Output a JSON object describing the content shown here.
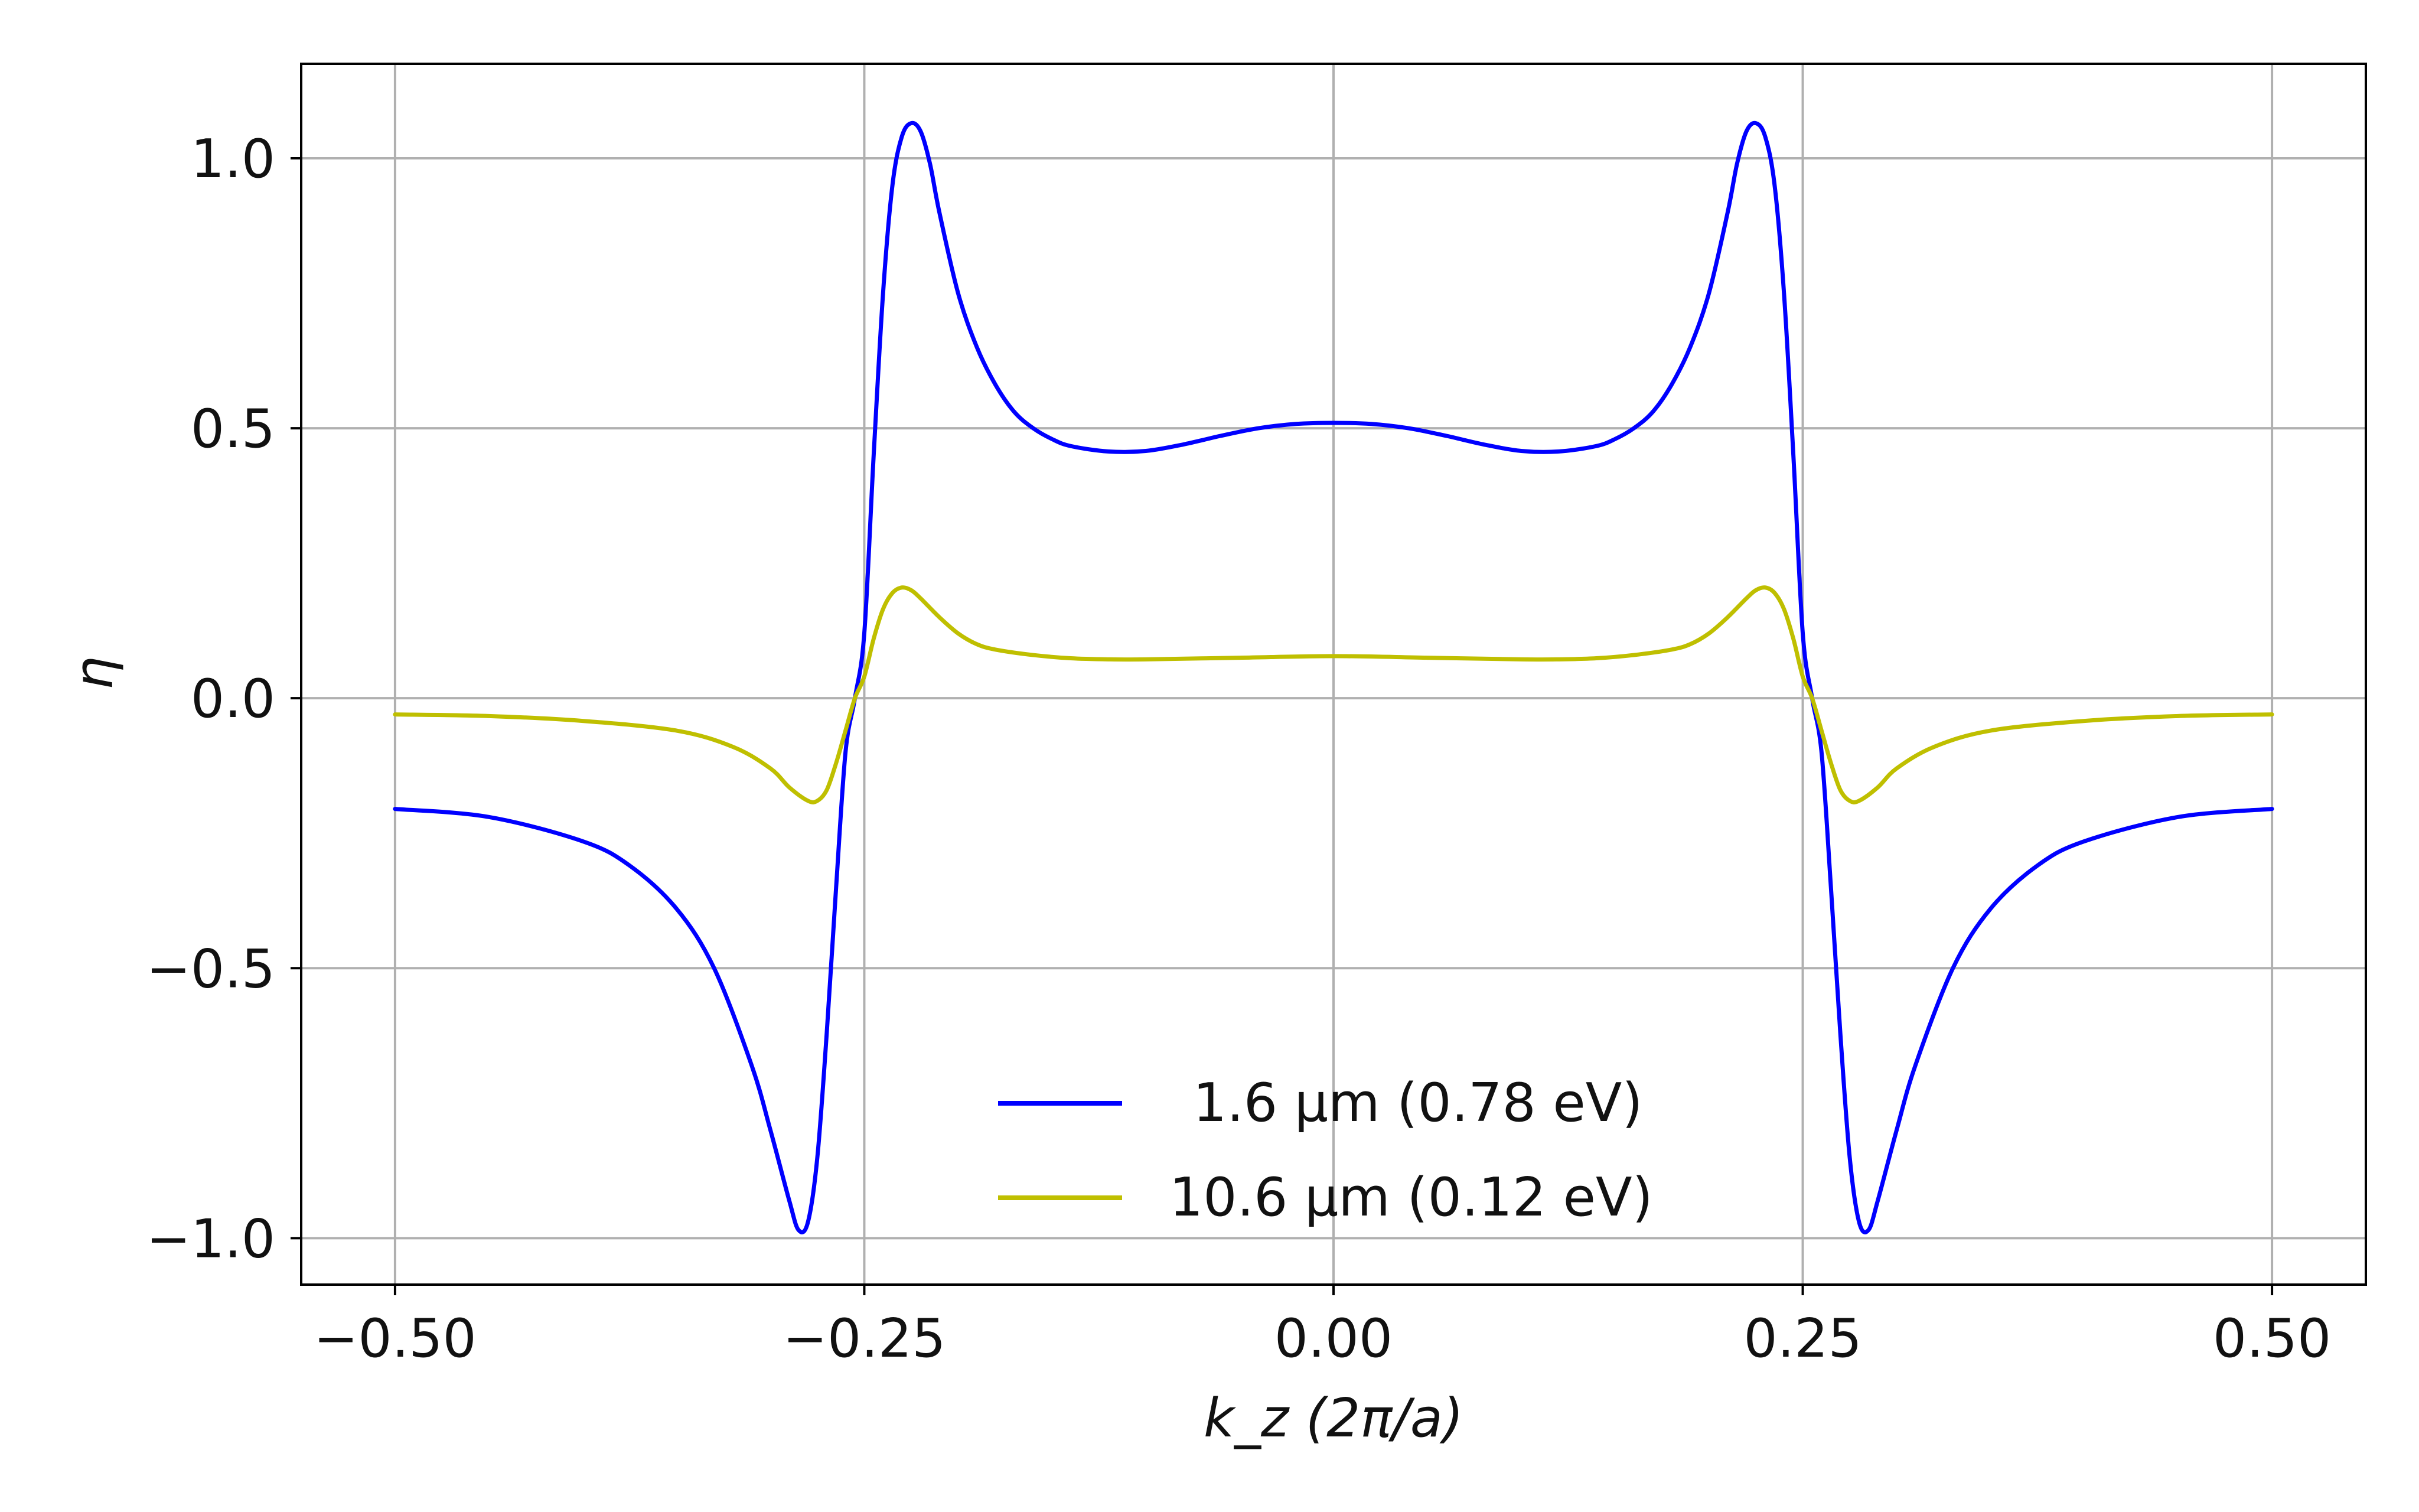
{
  "chart_data": {
    "type": "line",
    "title": "",
    "xlabel": "k_z (2π/a)",
    "ylabel": "η",
    "xlim": [
      -0.55,
      0.55
    ],
    "ylim": [
      -1.086,
      1.175
    ],
    "xticks": [
      -0.5,
      -0.25,
      0.0,
      0.25,
      0.5
    ],
    "xtick_labels": [
      "−0.50",
      "−0.25",
      "0.00",
      "0.25",
      "0.50"
    ],
    "yticks": [
      -1.0,
      -0.5,
      0.0,
      0.5,
      1.0
    ],
    "ytick_labels": [
      "−1.0",
      "−0.5",
      "0.0",
      "0.5",
      "1.0"
    ],
    "grid": true,
    "legend_position": "lower-center",
    "series": [
      {
        "name": "1.6 μm (0.78 eV)",
        "color": "#0000ff",
        "x": [
          -0.5,
          -0.45,
          -0.4,
          -0.375,
          -0.35,
          -0.33,
          -0.31,
          -0.3,
          -0.29,
          -0.285,
          -0.28,
          -0.275,
          -0.27,
          -0.265,
          -0.26,
          -0.255,
          -0.25,
          -0.245,
          -0.24,
          -0.235,
          -0.23,
          -0.225,
          -0.22,
          -0.215,
          -0.21,
          -0.2,
          -0.19,
          -0.18,
          -0.17,
          -0.16,
          -0.15,
          -0.14,
          -0.12,
          -0.1,
          -0.08,
          -0.06,
          -0.04,
          -0.02,
          0.0,
          0.02,
          0.04,
          0.06,
          0.08,
          0.1,
          0.12,
          0.14,
          0.15,
          0.16,
          0.17,
          0.18,
          0.19,
          0.2,
          0.21,
          0.215,
          0.22,
          0.225,
          0.23,
          0.235,
          0.24,
          0.245,
          0.25,
          0.255,
          0.26,
          0.265,
          0.27,
          0.275,
          0.28,
          0.285,
          0.29,
          0.3,
          0.31,
          0.33,
          0.35,
          0.375,
          0.4,
          0.45,
          0.5
        ],
        "y": [
          -0.205,
          -0.22,
          -0.265,
          -0.31,
          -0.39,
          -0.5,
          -0.68,
          -0.8,
          -0.93,
          -0.985,
          -0.97,
          -0.85,
          -0.62,
          -0.35,
          -0.1,
          0.0,
          0.12,
          0.45,
          0.75,
          0.95,
          1.04,
          1.065,
          1.05,
          0.99,
          0.9,
          0.75,
          0.65,
          0.58,
          0.53,
          0.5,
          0.48,
          0.467,
          0.457,
          0.458,
          0.47,
          0.486,
          0.5,
          0.508,
          0.51,
          0.508,
          0.5,
          0.486,
          0.47,
          0.458,
          0.457,
          0.467,
          0.48,
          0.5,
          0.53,
          0.58,
          0.65,
          0.75,
          0.9,
          0.99,
          1.05,
          1.065,
          1.04,
          0.95,
          0.75,
          0.45,
          0.12,
          0.0,
          -0.1,
          -0.35,
          -0.62,
          -0.85,
          -0.97,
          -0.985,
          -0.93,
          -0.8,
          -0.68,
          -0.5,
          -0.39,
          -0.31,
          -0.265,
          -0.22,
          -0.205
        ]
      },
      {
        "name": "10.6 μm (0.12 eV)",
        "color": "#bfbf00",
        "x": [
          -0.5,
          -0.45,
          -0.4,
          -0.35,
          -0.32,
          -0.3,
          -0.29,
          -0.28,
          -0.275,
          -0.27,
          -0.265,
          -0.26,
          -0.255,
          -0.25,
          -0.245,
          -0.24,
          -0.235,
          -0.23,
          -0.225,
          -0.22,
          -0.21,
          -0.2,
          -0.19,
          -0.18,
          -0.16,
          -0.14,
          -0.12,
          -0.1,
          -0.05,
          0.0,
          0.05,
          0.1,
          0.12,
          0.14,
          0.16,
          0.18,
          0.19,
          0.2,
          0.21,
          0.22,
          0.225,
          0.23,
          0.235,
          0.24,
          0.245,
          0.25,
          0.255,
          0.26,
          0.265,
          0.27,
          0.275,
          0.28,
          0.29,
          0.3,
          0.32,
          0.35,
          0.4,
          0.45,
          0.5
        ],
        "y": [
          -0.03,
          -0.033,
          -0.042,
          -0.06,
          -0.09,
          -0.13,
          -0.165,
          -0.19,
          -0.19,
          -0.17,
          -0.12,
          -0.06,
          0.0,
          0.04,
          0.11,
          0.165,
          0.195,
          0.205,
          0.2,
          0.185,
          0.15,
          0.12,
          0.1,
          0.09,
          0.08,
          0.074,
          0.072,
          0.072,
          0.075,
          0.078,
          0.075,
          0.072,
          0.072,
          0.074,
          0.08,
          0.09,
          0.1,
          0.12,
          0.15,
          0.185,
          0.2,
          0.205,
          0.195,
          0.165,
          0.11,
          0.04,
          0.0,
          -0.06,
          -0.12,
          -0.17,
          -0.19,
          -0.19,
          -0.165,
          -0.13,
          -0.09,
          -0.06,
          -0.042,
          -0.033,
          -0.03
        ]
      }
    ]
  }
}
